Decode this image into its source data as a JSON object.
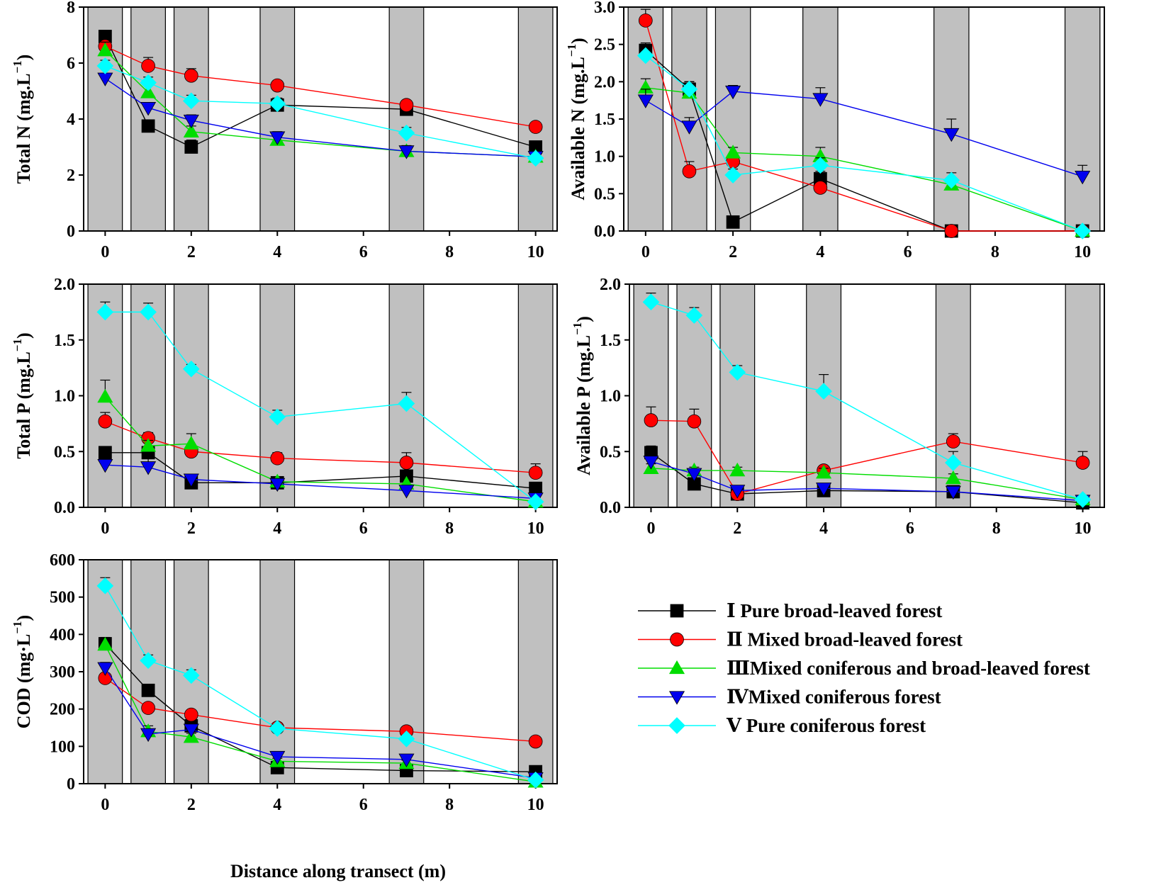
{
  "figure": {
    "xlabel": "Distance along transect (m)",
    "x_ticks": [
      "0",
      "2",
      "4",
      "6",
      "8",
      "10"
    ]
  },
  "legend": {
    "items": [
      {
        "label": "Ⅰ Pure broad-leaved forest",
        "color": "#000000",
        "marker": "square"
      },
      {
        "label": "Ⅱ Mixed broad-leaved forest",
        "color": "#ff0000",
        "marker": "circle"
      },
      {
        "label": "ⅢMixed coniferous and broad-leaved forest",
        "color": "#00dd00",
        "marker": "triangle-up"
      },
      {
        "label": "ⅣMixed coniferous forest",
        "color": "#0000ee",
        "marker": "triangle-down"
      },
      {
        "label": "Ⅴ Pure coniferous forest",
        "color": "#00ffff",
        "marker": "diamond"
      }
    ]
  },
  "chart_data": [
    {
      "type": "line",
      "title": "",
      "ylabel": "Total N (mg.L",
      "ylabel_sup": "−1",
      "ylabel_close": ")",
      "xlim": [
        -0.5,
        10.5
      ],
      "ylim": [
        0,
        8
      ],
      "y_ticks": [
        "0",
        "2",
        "4",
        "6",
        "8"
      ],
      "shaded_bands": [
        [
          -0.4,
          0.4
        ],
        [
          0.6,
          1.4
        ],
        [
          1.6,
          2.4
        ],
        [
          3.6,
          4.4
        ],
        [
          6.6,
          7.4
        ],
        [
          9.6,
          10.4
        ]
      ],
      "series": [
        {
          "name": "Ⅰ Pure broad-leaved forest",
          "x": [
            0,
            1,
            2,
            4,
            7,
            10
          ],
          "values": [
            6.95,
            3.75,
            3.0,
            4.5,
            4.35,
            3.0
          ],
          "err": [
            0.15,
            0.15,
            0.25,
            0.2,
            0.2,
            0.15
          ]
        },
        {
          "name": "Ⅱ Mixed broad-leaved forest",
          "x": [
            0,
            1,
            2,
            4,
            7,
            10
          ],
          "values": [
            6.6,
            5.9,
            5.55,
            5.2,
            4.5,
            3.72
          ],
          "err": [
            0.15,
            0.3,
            0.25,
            0.1,
            0.15,
            0.15
          ]
        },
        {
          "name": "ⅢMixed coniferous and broad-leaved forest",
          "x": [
            0,
            1,
            2,
            4,
            7,
            10
          ],
          "values": [
            6.45,
            4.95,
            3.55,
            3.25,
            2.85,
            2.65
          ],
          "err": [
            0.3,
            0.3,
            0.2,
            0.2,
            0.2,
            0.1
          ]
        },
        {
          "name": "ⅣMixed coniferous forest",
          "x": [
            0,
            1,
            2,
            4,
            7,
            10
          ],
          "values": [
            5.45,
            4.4,
            3.95,
            3.35,
            2.85,
            2.65
          ],
          "err": [
            0.1,
            0.15,
            0.2,
            0.2,
            0.2,
            0.1
          ]
        },
        {
          "name": "Ⅴ Pure coniferous forest",
          "x": [
            0,
            1,
            2,
            4,
            7,
            10
          ],
          "values": [
            5.9,
            5.3,
            4.65,
            4.55,
            3.5,
            2.6
          ],
          "err": [
            0.2,
            0.2,
            0.2,
            0.2,
            0.2,
            0.1
          ]
        }
      ]
    },
    {
      "type": "line",
      "title": "",
      "ylabel": "Available N (mg.L",
      "ylabel_sup": "−1",
      "ylabel_close": ")",
      "xlim": [
        -0.5,
        10.5
      ],
      "ylim": [
        0,
        3
      ],
      "y_ticks": [
        "0.0",
        "0.5",
        "1.0",
        "1.5",
        "2.0",
        "2.5",
        "3.0"
      ],
      "shaded_bands": [
        [
          -0.4,
          0.4
        ],
        [
          0.6,
          1.4
        ],
        [
          1.6,
          2.4
        ],
        [
          3.6,
          4.4
        ],
        [
          6.6,
          7.4
        ],
        [
          9.6,
          10.4
        ]
      ],
      "series": [
        {
          "name": "Ⅰ Pure broad-leaved forest",
          "x": [
            0,
            1,
            2,
            4,
            7,
            10
          ],
          "values": [
            2.42,
            1.9,
            0.12,
            0.7,
            0.0,
            0.0
          ],
          "err": [
            0.1,
            0.1,
            0.02,
            0.1,
            0.02,
            0.02
          ]
        },
        {
          "name": "Ⅱ Mixed broad-leaved forest",
          "x": [
            0,
            1,
            2,
            4,
            7,
            10
          ],
          "values": [
            2.82,
            0.8,
            0.93,
            0.58,
            0.0,
            0.0
          ],
          "err": [
            0.15,
            0.13,
            0.07,
            0.05,
            0.02,
            0.02
          ]
        },
        {
          "name": "ⅢMixed coniferous and broad-leaved forest",
          "x": [
            0,
            1,
            2,
            4,
            7,
            10
          ],
          "values": [
            1.92,
            1.85,
            1.05,
            1.0,
            0.62,
            0.0
          ],
          "err": [
            0.12,
            0.15,
            0.07,
            0.12,
            0.07,
            0.02
          ]
        },
        {
          "name": "ⅣMixed coniferous forest",
          "x": [
            0,
            1,
            2,
            4,
            7,
            10
          ],
          "values": [
            1.75,
            1.4,
            1.87,
            1.77,
            1.3,
            0.73
          ],
          "err": [
            0.15,
            0.12,
            0.08,
            0.15,
            0.2,
            0.15
          ]
        },
        {
          "name": "Ⅴ Pure coniferous forest",
          "x": [
            0,
            1,
            2,
            4,
            7,
            10
          ],
          "values": [
            2.35,
            1.9,
            0.75,
            0.88,
            0.68,
            0.0
          ],
          "err": [
            0.1,
            0.1,
            0.08,
            0.1,
            0.1,
            0.02
          ]
        }
      ]
    },
    {
      "type": "line",
      "title": "",
      "ylabel": "Total P (mg.L",
      "ylabel_sup": "−1",
      "ylabel_close": ")",
      "xlim": [
        -0.5,
        10.5
      ],
      "ylim": [
        0,
        2
      ],
      "y_ticks": [
        "0.0",
        "0.5",
        "1.0",
        "1.5",
        "2.0"
      ],
      "shaded_bands": [
        [
          -0.4,
          0.4
        ],
        [
          0.6,
          1.4
        ],
        [
          1.6,
          2.4
        ],
        [
          3.6,
          4.4
        ],
        [
          6.6,
          7.4
        ],
        [
          9.6,
          10.4
        ]
      ],
      "series": [
        {
          "name": "Ⅰ Pure broad-leaved forest",
          "x": [
            0,
            1,
            2,
            4,
            7,
            10
          ],
          "values": [
            0.49,
            0.49,
            0.22,
            0.22,
            0.28,
            0.17
          ],
          "err": [
            0.05,
            0.05,
            0.03,
            0.03,
            0.05,
            0.03
          ]
        },
        {
          "name": "Ⅱ Mixed broad-leaved forest",
          "x": [
            0,
            1,
            2,
            4,
            7,
            10
          ],
          "values": [
            0.77,
            0.62,
            0.5,
            0.44,
            0.4,
            0.31
          ],
          "err": [
            0.08,
            0.05,
            0.05,
            0.05,
            0.09,
            0.08
          ]
        },
        {
          "name": "ⅢMixed coniferous and broad-leaved forest",
          "x": [
            0,
            1,
            2,
            4,
            7,
            10
          ],
          "values": [
            0.99,
            0.55,
            0.57,
            0.23,
            0.21,
            0.05
          ],
          "err": [
            0.15,
            0.05,
            0.09,
            0.04,
            0.03,
            0.02
          ]
        },
        {
          "name": "ⅣMixed coniferous forest",
          "x": [
            0,
            1,
            2,
            4,
            7,
            10
          ],
          "values": [
            0.38,
            0.36,
            0.25,
            0.21,
            0.15,
            0.08
          ],
          "err": [
            0.03,
            0.1,
            0.03,
            0.03,
            0.03,
            0.02
          ]
        },
        {
          "name": "Ⅴ Pure coniferous forest",
          "x": [
            0,
            1,
            2,
            4,
            7,
            10
          ],
          "values": [
            1.75,
            1.75,
            1.24,
            0.81,
            0.93,
            0.05
          ],
          "err": [
            0.09,
            0.08,
            0.04,
            0.06,
            0.1,
            0.02
          ]
        }
      ]
    },
    {
      "type": "line",
      "title": "",
      "ylabel": "Available P (mg.L",
      "ylabel_sup": "−1",
      "ylabel_close": ")",
      "xlim": [
        -0.5,
        10.5
      ],
      "ylim": [
        0,
        2
      ],
      "y_ticks": [
        "0.0",
        "0.5",
        "1.0",
        "1.5",
        "2.0"
      ],
      "shaded_bands": [
        [
          -0.4,
          0.4
        ],
        [
          0.6,
          1.4
        ],
        [
          1.6,
          2.4
        ],
        [
          3.6,
          4.4
        ],
        [
          6.6,
          7.4
        ],
        [
          9.6,
          10.4
        ]
      ],
      "series": [
        {
          "name": "Ⅰ Pure broad-leaved forest",
          "x": [
            0,
            1,
            2,
            4,
            7,
            10
          ],
          "values": [
            0.49,
            0.21,
            0.12,
            0.15,
            0.14,
            0.04
          ],
          "err": [
            0.06,
            0.03,
            0.02,
            0.02,
            0.02,
            0.01
          ]
        },
        {
          "name": "Ⅱ Mixed broad-leaved forest",
          "x": [
            0,
            1,
            2,
            4,
            7,
            10
          ],
          "values": [
            0.78,
            0.77,
            0.12,
            0.33,
            0.59,
            0.4
          ],
          "err": [
            0.12,
            0.11,
            0.02,
            0.04,
            0.07,
            0.1
          ]
        },
        {
          "name": "ⅢMixed coniferous and broad-leaved forest",
          "x": [
            0,
            1,
            2,
            4,
            7,
            10
          ],
          "values": [
            0.35,
            0.33,
            0.33,
            0.31,
            0.26,
            0.07
          ],
          "err": [
            0.04,
            0.03,
            0.03,
            0.04,
            0.04,
            0.02
          ]
        },
        {
          "name": "ⅣMixed coniferous forest",
          "x": [
            0,
            1,
            2,
            4,
            7,
            10
          ],
          "values": [
            0.41,
            0.3,
            0.15,
            0.17,
            0.14,
            0.06
          ],
          "err": [
            0.06,
            0.04,
            0.02,
            0.02,
            0.02,
            0.01
          ]
        },
        {
          "name": "Ⅴ Pure coniferous forest",
          "x": [
            0,
            1,
            2,
            4,
            7,
            10
          ],
          "values": [
            1.84,
            1.72,
            1.21,
            1.04,
            0.4,
            0.07
          ],
          "err": [
            0.08,
            0.07,
            0.06,
            0.15,
            0.1,
            0.02
          ]
        }
      ]
    },
    {
      "type": "line",
      "title": "",
      "ylabel": "COD (mg·L",
      "ylabel_sup": "−1",
      "ylabel_close": ")",
      "xlim": [
        -0.5,
        10.5
      ],
      "ylim": [
        0,
        600
      ],
      "y_ticks": [
        "0",
        "100",
        "200",
        "300",
        "400",
        "500",
        "600"
      ],
      "shaded_bands": [
        [
          -0.4,
          0.4
        ],
        [
          0.6,
          1.4
        ],
        [
          1.6,
          2.4
        ],
        [
          3.6,
          4.4
        ],
        [
          6.6,
          7.4
        ],
        [
          9.6,
          10.4
        ]
      ],
      "series": [
        {
          "name": "Ⅰ Pure broad-leaved forest",
          "x": [
            0,
            1,
            2,
            4,
            7,
            10
          ],
          "values": [
            375,
            250,
            155,
            43,
            35,
            32
          ],
          "err": [
            15,
            10,
            10,
            5,
            5,
            5
          ]
        },
        {
          "name": "Ⅱ Mixed broad-leaved forest",
          "x": [
            0,
            1,
            2,
            4,
            7,
            10
          ],
          "values": [
            283,
            203,
            185,
            150,
            140,
            113
          ],
          "err": [
            12,
            10,
            10,
            10,
            8,
            8
          ]
        },
        {
          "name": "ⅢMixed coniferous and broad-leaved forest",
          "x": [
            0,
            1,
            2,
            4,
            7,
            10
          ],
          "values": [
            372,
            140,
            125,
            60,
            55,
            5
          ],
          "err": [
            20,
            15,
            10,
            8,
            8,
            3
          ]
        },
        {
          "name": "ⅣMixed coniferous forest",
          "x": [
            0,
            1,
            2,
            4,
            7,
            10
          ],
          "values": [
            310,
            133,
            145,
            72,
            65,
            15
          ],
          "err": [
            15,
            10,
            15,
            8,
            8,
            5
          ]
        },
        {
          "name": "Ⅴ Pure coniferous forest",
          "x": [
            0,
            1,
            2,
            4,
            7,
            10
          ],
          "values": [
            530,
            330,
            290,
            148,
            120,
            10
          ],
          "err": [
            22,
            15,
            15,
            10,
            10,
            3
          ]
        }
      ]
    }
  ]
}
